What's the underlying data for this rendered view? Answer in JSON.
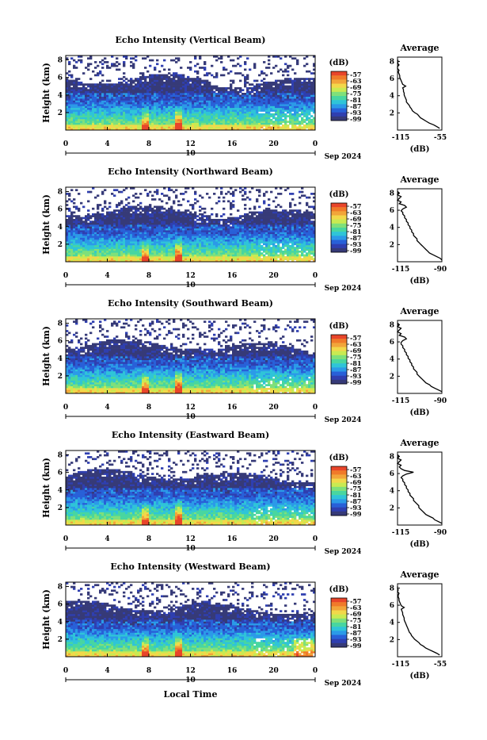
{
  "charts": [
    {
      "title": "Echo Intensity (Vertical Beam)",
      "avg_x_ticks": [
        "-115",
        "-55"
      ],
      "avg_profile": [
        -58,
        -62,
        -66,
        -72,
        -76,
        -80,
        -84,
        -86,
        -88,
        -92,
        -95,
        -96,
        -98,
        -99,
        -101,
        -103,
        -103,
        -104,
        -105,
        -106,
        -106,
        -107,
        -107,
        -108,
        -104,
        -108,
        -109,
        -110,
        -111,
        -112,
        -112,
        -113,
        -114,
        -113,
        -115,
        -115,
        -113,
        -115,
        -114,
        -115
      ]
    },
    {
      "title": "Echo Intensity (Northward Beam)",
      "avg_x_ticks": [
        "-115",
        "-90"
      ],
      "avg_profile": [
        -90,
        -91,
        -93,
        -95,
        -97,
        -98,
        -99,
        -100,
        -101,
        -102,
        -103,
        -104,
        -104,
        -105,
        -106,
        -106,
        -107,
        -107,
        -108,
        -108,
        -109,
        -109,
        -110,
        -110,
        -111,
        -111,
        -112,
        -112,
        -113,
        -112,
        -110,
        -111,
        -114,
        -113,
        -115,
        -114,
        -113,
        -115,
        -114,
        -115
      ]
    },
    {
      "title": "Echo Intensity (Southward Beam)",
      "avg_x_ticks": [
        "-115",
        "-90"
      ],
      "avg_profile": [
        -90,
        -92,
        -94,
        -96,
        -97,
        -99,
        -100,
        -101,
        -102,
        -103,
        -104,
        -104,
        -105,
        -106,
        -106,
        -107,
        -107,
        -108,
        -108,
        -109,
        -109,
        -110,
        -110,
        -111,
        -111,
        -112,
        -112,
        -113,
        -113,
        -112,
        -110,
        -111,
        -114,
        -113,
        -115,
        -114,
        -113,
        -115,
        -114,
        -115
      ]
    },
    {
      "title": "Echo Intensity (Eastward Beam)",
      "avg_x_ticks": [
        "-115",
        "-90"
      ],
      "avg_profile": [
        -90,
        -92,
        -94,
        -95,
        -97,
        -99,
        -100,
        -101,
        -102,
        -103,
        -103,
        -104,
        -105,
        -106,
        -106,
        -107,
        -108,
        -108,
        -109,
        -109,
        -110,
        -110,
        -111,
        -111,
        -112,
        -112,
        -113,
        -112,
        -110,
        -106,
        -111,
        -113,
        -114,
        -113,
        -115,
        -114,
        -113,
        -115,
        -114,
        -115
      ]
    },
    {
      "title": "Echo Intensity (Westward Beam)",
      "avg_x_ticks": [
        "-115",
        "-55"
      ],
      "avg_profile": [
        -58,
        -62,
        -67,
        -72,
        -77,
        -80,
        -84,
        -86,
        -89,
        -92,
        -94,
        -96,
        -97,
        -99,
        -100,
        -101,
        -102,
        -103,
        -104,
        -105,
        -106,
        -106,
        -107,
        -108,
        -108,
        -109,
        -110,
        -106,
        -110,
        -111,
        -112,
        -113,
        -113,
        -114,
        -114,
        -113,
        -115,
        -114,
        -115,
        -115
      ]
    }
  ],
  "ylabel": "Height (km)",
  "y_ticks": [
    "2",
    "4",
    "6",
    "8"
  ],
  "x_ticks": [
    "0",
    "4",
    "8",
    "12",
    "16",
    "20",
    "0"
  ],
  "date_tick": "10",
  "date_label": "Sep 2024",
  "xlabel": "Local Time",
  "avg_title": "Average",
  "avg_unit": "(dB)",
  "colorbar": {
    "unit": "(dB)",
    "ticks": [
      "-57",
      "-63",
      "-69",
      "-75",
      "-81",
      "-87",
      "-93",
      "-99"
    ],
    "colors": [
      "#e8452a",
      "#f07a2a",
      "#f2a53a",
      "#f2d84a",
      "#c9ea52",
      "#7fe07a",
      "#48d6a0",
      "#2fc4d8",
      "#2b9ae8",
      "#2860d8",
      "#2f3fb0",
      "#363a78"
    ]
  },
  "chart_data": [
    {
      "type": "heatmap",
      "title": "Echo Intensity (Vertical Beam)",
      "xlabel": "",
      "ylabel": "Height (km)",
      "x_range": [
        0,
        24
      ],
      "y_range": [
        0,
        8
      ],
      "value_range": [
        -99,
        -57
      ],
      "avg_xlim": [
        -115,
        -55
      ]
    },
    {
      "type": "heatmap",
      "title": "Echo Intensity (Northward Beam)",
      "xlabel": "",
      "ylabel": "Height (km)",
      "x_range": [
        0,
        24
      ],
      "y_range": [
        0,
        8
      ],
      "value_range": [
        -99,
        -57
      ],
      "avg_xlim": [
        -115,
        -90
      ]
    },
    {
      "type": "heatmap",
      "title": "Echo Intensity (Southward Beam)",
      "xlabel": "",
      "ylabel": "Height (km)",
      "x_range": [
        0,
        24
      ],
      "y_range": [
        0,
        8
      ],
      "value_range": [
        -99,
        -57
      ],
      "avg_xlim": [
        -115,
        -90
      ]
    },
    {
      "type": "heatmap",
      "title": "Echo Intensity (Eastward Beam)",
      "xlabel": "",
      "ylabel": "Height (km)",
      "x_range": [
        0,
        24
      ],
      "y_range": [
        0,
        8
      ],
      "value_range": [
        -99,
        -57
      ],
      "avg_xlim": [
        -115,
        -90
      ]
    },
    {
      "type": "heatmap",
      "title": "Echo Intensity (Westward Beam)",
      "xlabel": "Local Time",
      "ylabel": "Height (km)",
      "x_range": [
        0,
        24
      ],
      "y_range": [
        0,
        8
      ],
      "value_range": [
        -99,
        -57
      ],
      "avg_xlim": [
        -115,
        -55
      ]
    }
  ]
}
